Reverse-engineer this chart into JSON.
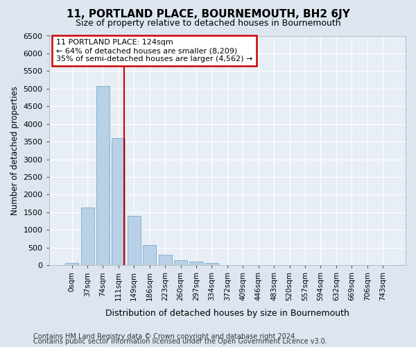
{
  "title": "11, PORTLAND PLACE, BOURNEMOUTH, BH2 6JY",
  "subtitle": "Size of property relative to detached houses in Bournemouth",
  "xlabel": "Distribution of detached houses by size in Bournemouth",
  "ylabel": "Number of detached properties",
  "footnote1": "Contains HM Land Registry data © Crown copyright and database right 2024.",
  "footnote2": "Contains public sector information licensed under the Open Government Licence v3.0.",
  "bar_labels": [
    "0sqm",
    "37sqm",
    "74sqm",
    "111sqm",
    "149sqm",
    "186sqm",
    "223sqm",
    "260sqm",
    "297sqm",
    "334sqm",
    "372sqm",
    "409sqm",
    "446sqm",
    "483sqm",
    "520sqm",
    "557sqm",
    "594sqm",
    "632sqm",
    "669sqm",
    "706sqm",
    "743sqm"
  ],
  "bar_values": [
    65,
    1630,
    5080,
    3600,
    1400,
    580,
    290,
    150,
    100,
    55,
    0,
    0,
    0,
    0,
    0,
    0,
    0,
    0,
    0,
    0,
    0
  ],
  "bar_color": "#b8d0e8",
  "bar_edge_color": "#7aaac8",
  "ylim": [
    0,
    6500
  ],
  "yticks": [
    0,
    500,
    1000,
    1500,
    2000,
    2500,
    3000,
    3500,
    4000,
    4500,
    5000,
    5500,
    6000,
    6500
  ],
  "annotation_line1": "11 PORTLAND PLACE: 124sqm",
  "annotation_line2": "← 64% of detached houses are smaller (8,209)",
  "annotation_line3": "35% of semi-detached houses are larger (4,562) →",
  "vline_color": "#cc0000",
  "vline_x": 3.35,
  "annotation_box_edge": "#cc0000",
  "bg_color": "#dde6f0",
  "plot_bg_color": "#e8eef5",
  "grid_color": "#ffffff"
}
